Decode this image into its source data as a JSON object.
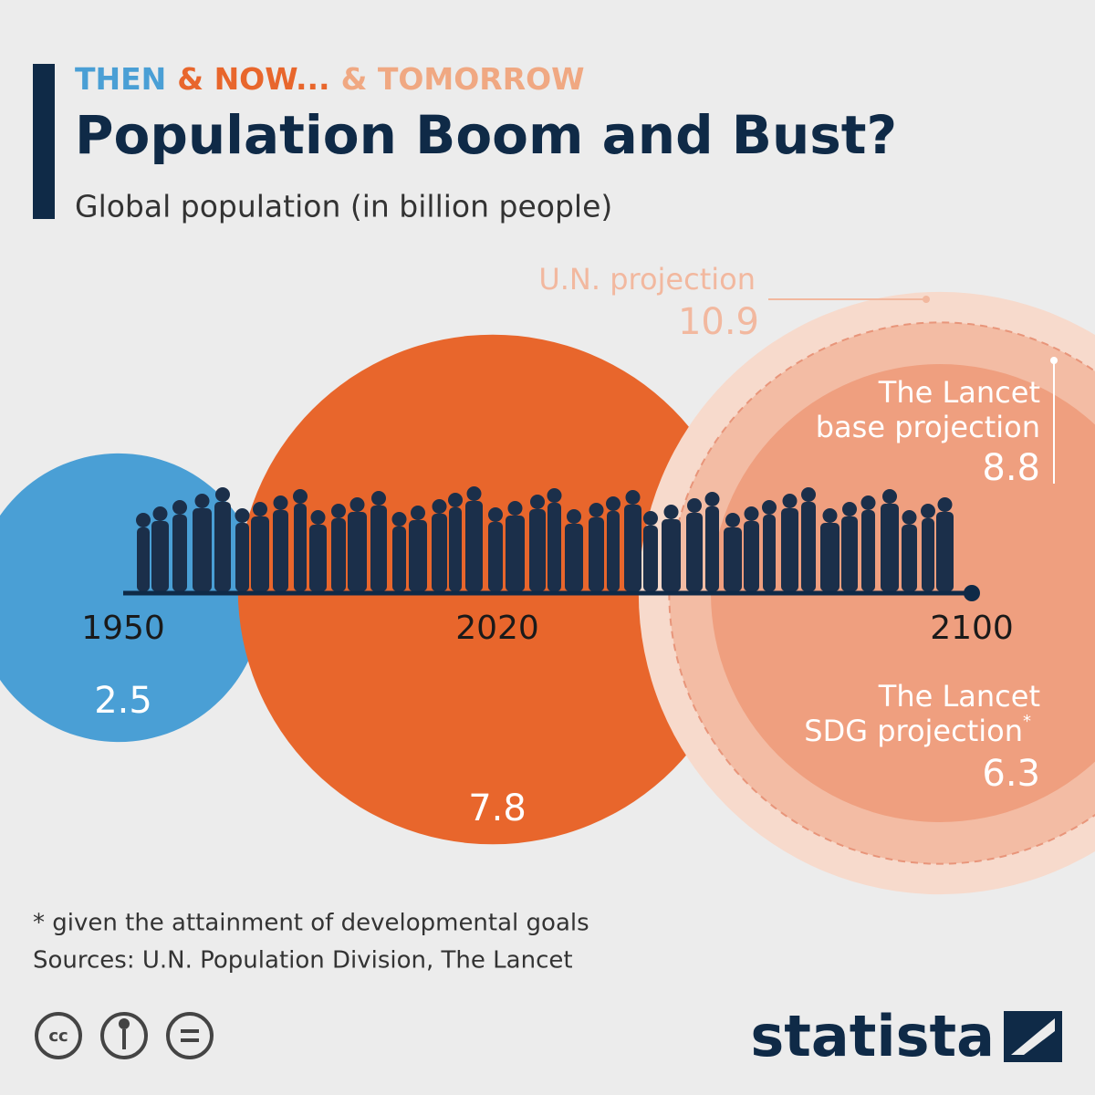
{
  "chart_data": {
    "type": "bubble",
    "kicker": [
      {
        "text": "THEN",
        "color": "#4a9fd5"
      },
      {
        "text": "& NOW...",
        "color": "#e8662c"
      },
      {
        "text": "& TOMORROW",
        "color": "#f0a882"
      }
    ],
    "title": "Population Boom and Bust?",
    "subtitle": "Global population (in billion people)",
    "points": [
      {
        "year": "1950",
        "value": 2.5,
        "color": "#4a9fd5"
      },
      {
        "year": "2020",
        "value": 7.8,
        "color": "#e8662c"
      }
    ],
    "projection_year": "2100",
    "projections": [
      {
        "label": [
          "U.N. projection"
        ],
        "value": 10.9,
        "color": "#f7dacc"
      },
      {
        "label": [
          "The Lancet",
          "base projection"
        ],
        "value": 8.8,
        "color": "#f3bca4"
      },
      {
        "label": [
          "The Lancet",
          "SDG projection"
        ],
        "marker": "*",
        "value": 6.3,
        "color": "#ef9f7f"
      }
    ],
    "footnote": "* given the attainment of developmental goals",
    "source": "Sources: U.N. Population Division, The Lancet",
    "brand": "statista"
  }
}
